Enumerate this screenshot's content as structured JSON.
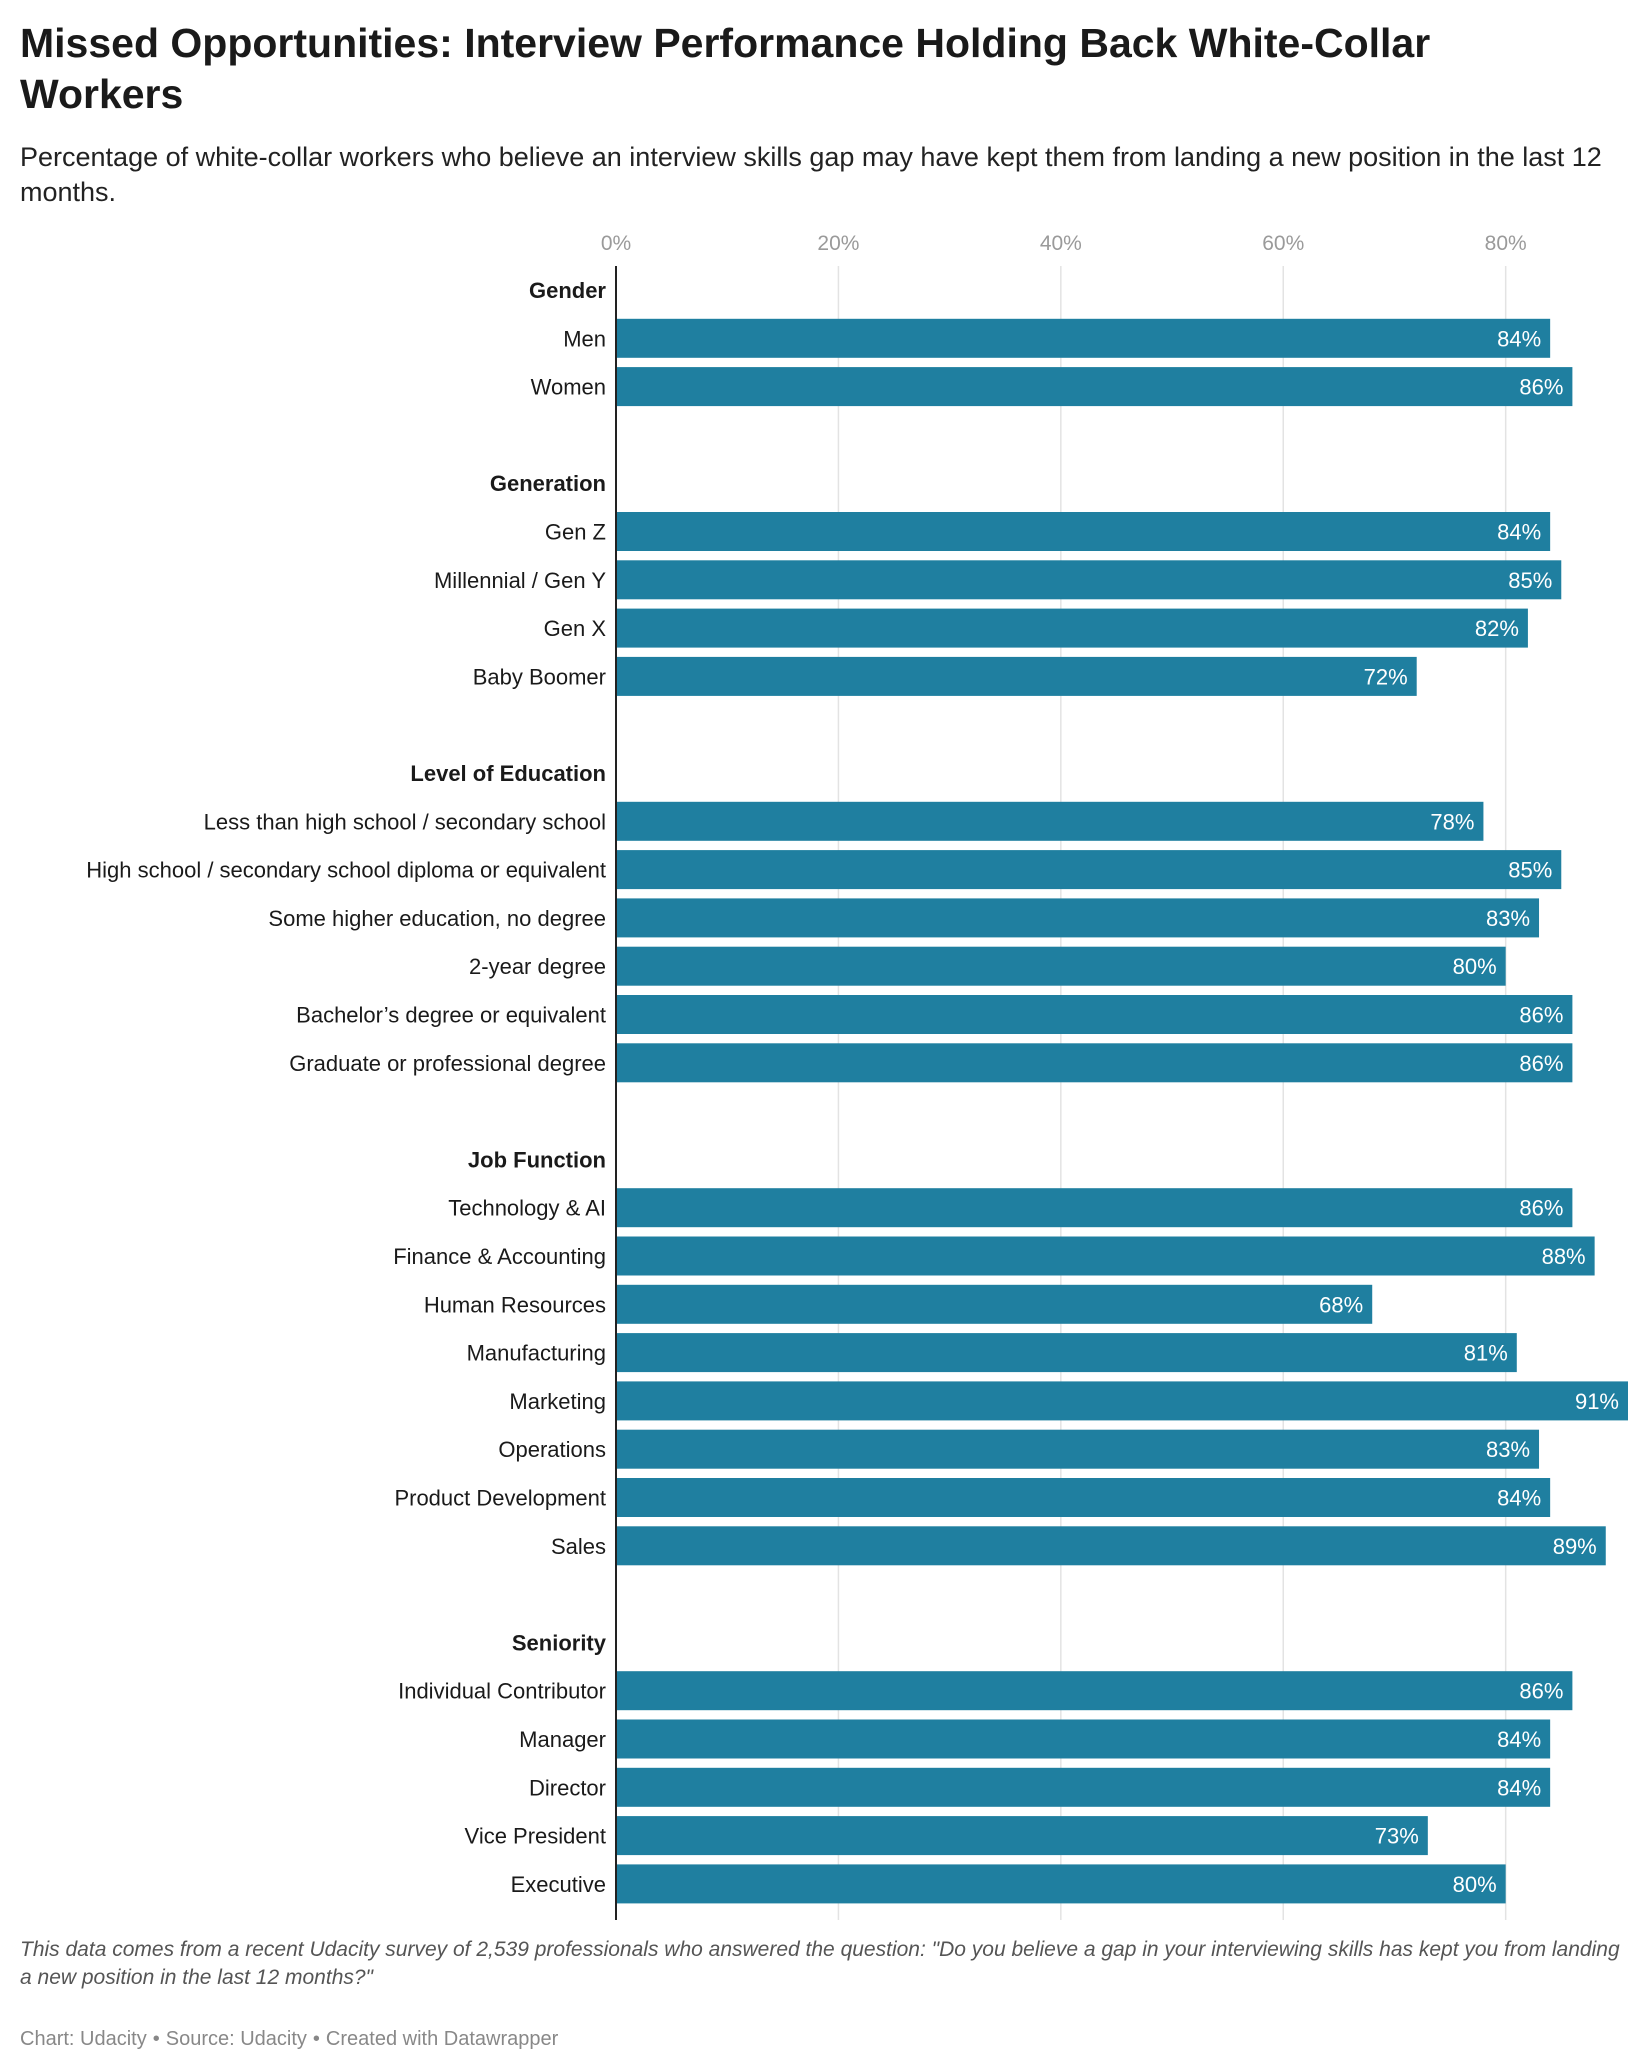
{
  "title": "Missed Opportunities: Interview Performance Holding Back White-Collar Workers",
  "subtitle": "Percentage of white-collar workers who believe an interview skills gap may have kept them from landing a new position in the last 12 months.",
  "notes": "This data comes from a recent Udacity survey of 2,539 professionals who answered the question: \"Do you believe a gap in your interviewing skills has kept you from landing a new position in the last 12 months?\"",
  "footer": {
    "chart": "Chart: Udacity",
    "separator": "•",
    "source": "Source: Udacity",
    "created": "Created with Datawrapper"
  },
  "colors": {
    "bar": "#1f7fa0",
    "bar_label": "#ffffff",
    "gridline": "#e3e3e3",
    "axis": "#222222",
    "tick_label": "#9a9a9a"
  },
  "chart_data": {
    "type": "bar",
    "orientation": "horizontal",
    "xlim": [
      0,
      91
    ],
    "xticks": [
      0,
      20,
      40,
      60,
      80
    ],
    "tick_format": "{v}%",
    "value_format": "{v}%",
    "grid": true,
    "groups": [
      {
        "name": "Gender",
        "categories": [
          "Men",
          "Women"
        ],
        "values": [
          84,
          86
        ]
      },
      {
        "name": "Generation",
        "categories": [
          "Gen Z",
          "Millennial / Gen Y",
          "Gen X",
          "Baby Boomer"
        ],
        "values": [
          84,
          85,
          82,
          72
        ]
      },
      {
        "name": "Level of Education",
        "categories": [
          "Less than high school / secondary school",
          "High school / secondary school diploma or equivalent",
          "Some higher education, no degree",
          "2-year degree",
          "Bachelor’s degree or equivalent",
          "Graduate or professional degree"
        ],
        "values": [
          78,
          85,
          83,
          80,
          86,
          86
        ]
      },
      {
        "name": "Job Function",
        "categories": [
          "Technology & AI",
          "Finance & Accounting",
          "Human Resources",
          "Manufacturing",
          "Marketing",
          "Operations",
          "Product Development",
          "Sales"
        ],
        "values": [
          86,
          88,
          68,
          81,
          91,
          83,
          84,
          89
        ]
      },
      {
        "name": "Seniority",
        "categories": [
          "Individual Contributor",
          "Manager",
          "Director",
          "Vice President",
          "Executive"
        ],
        "values": [
          86,
          84,
          84,
          73,
          80
        ]
      }
    ]
  }
}
